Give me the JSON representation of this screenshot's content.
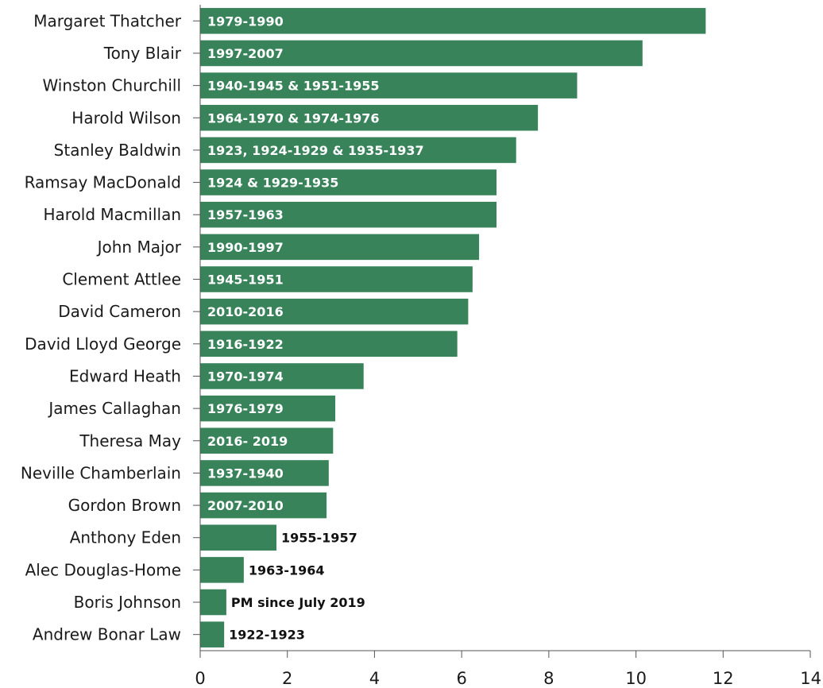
{
  "chart_data": {
    "type": "bar",
    "orientation": "horizontal",
    "title": "",
    "xlabel": "",
    "ylabel": "",
    "xlim": [
      0,
      14
    ],
    "xticks": [
      0,
      2,
      4,
      6,
      8,
      10,
      12,
      14
    ],
    "grid": false,
    "colors": {
      "bar": "#38835a",
      "label_inside": "#ffffff",
      "label_outside": "#111111",
      "axis": "#555555"
    },
    "categories": [
      "Margaret Thatcher",
      "Tony Blair",
      "Winston Churchill",
      "Harold Wilson",
      "Stanley Baldwin",
      "Ramsay MacDonald",
      "Harold Macmillan",
      "John Major",
      "Clement Attlee",
      "David Cameron",
      "David Lloyd George",
      "Edward Heath",
      "James Callaghan",
      "Theresa May",
      "Neville Chamberlain",
      "Gordon Brown",
      "Anthony Eden",
      "Alec Douglas-Home",
      "Boris Johnson",
      "Andrew Bonar Law"
    ],
    "values": [
      11.6,
      10.15,
      8.65,
      7.75,
      7.25,
      6.8,
      6.8,
      6.4,
      6.25,
      6.15,
      5.9,
      3.75,
      3.1,
      3.05,
      2.95,
      2.9,
      1.75,
      1.0,
      0.6,
      0.55
    ],
    "data_labels": [
      "1979-1990",
      "1997-2007",
      "1940-1945 & 1951-1955",
      "1964-1970 & 1974-1976",
      "1923, 1924-1929 & 1935-1937",
      "1924 & 1929-1935",
      "1957-1963",
      "1990-1997",
      "1945-1951",
      "2010-2016",
      "1916-1922",
      "1970-1974",
      "1976-1979",
      "2016- 2019",
      "1937-1940",
      "2007-2010",
      "1955-1957",
      "1963-1964",
      "PM since July 2019",
      "1922-1923"
    ],
    "label_inside": [
      true,
      true,
      true,
      true,
      true,
      true,
      true,
      true,
      true,
      true,
      true,
      true,
      true,
      true,
      true,
      true,
      false,
      false,
      false,
      false
    ]
  }
}
